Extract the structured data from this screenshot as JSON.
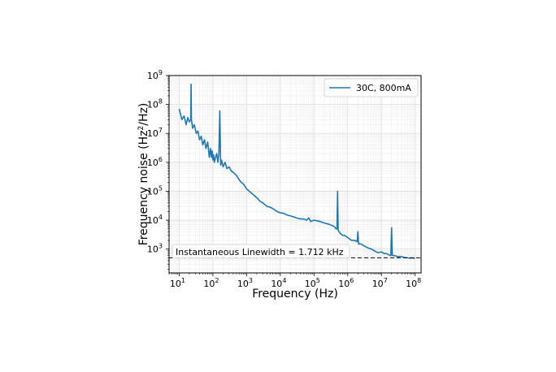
{
  "chart_data": {
    "type": "line",
    "xlabel": "Frequency (Hz)",
    "ylabel_main": "Frequency noise (Hz",
    "ylabel_sup": "2",
    "ylabel_tail": "/Hz)",
    "xscale": "log",
    "yscale": "log",
    "xlim": [
      5,
      150000000
    ],
    "ylim": [
      150,
      1000000000
    ],
    "x_tick_exponents": [
      1,
      2,
      3,
      4,
      5,
      6,
      7,
      8
    ],
    "y_tick_exponents": [
      3,
      4,
      5,
      6,
      7,
      8,
      9
    ],
    "tick_base": "10",
    "grid": true,
    "legend_position": "top-right",
    "series": [
      {
        "name": "30C, 800mA",
        "color": "#1f77b4",
        "x": [
          10,
          12,
          14,
          16,
          18,
          20,
          22,
          22.5,
          23,
          25,
          28,
          32,
          36,
          40,
          45,
          50,
          56,
          62,
          70,
          78,
          85,
          90,
          95,
          100,
          105,
          110,
          120,
          130,
          140,
          150,
          160,
          170,
          180,
          200,
          230,
          260,
          300,
          350,
          400,
          500,
          600,
          700,
          800,
          1000,
          1200,
          1500,
          2000,
          2500,
          3000,
          4000,
          5000,
          6000,
          8000,
          10000,
          13000,
          16000,
          20000,
          25000,
          30000,
          40000,
          50000,
          60000,
          70000,
          80000,
          100000,
          150000,
          200000,
          300000,
          400000,
          450000,
          480000,
          500000,
          520000,
          550000,
          600000,
          700000,
          800000,
          1000000,
          1300000,
          1600000,
          1900000,
          2000000,
          2100000,
          2500000,
          3000000,
          4000000,
          5000000,
          6000000,
          7000000,
          8000000,
          10000000,
          12000000,
          14000000,
          16000000,
          18000000,
          19000000,
          20000000,
          21000000,
          24000000,
          30000000,
          40000000,
          50000000,
          60000000,
          70000000,
          80000000,
          90000000,
          100000000
        ],
        "y": [
          70000000,
          30000000,
          40000000,
          20000000,
          35000000,
          25000000,
          30000000,
          500000000,
          30000000,
          15000000,
          20000000,
          10000000,
          12000000,
          6000000,
          8000000,
          4000000,
          6000000,
          3000000,
          5000000,
          1500000,
          3000000,
          1500000,
          2500000,
          1200000,
          1800000,
          1000000,
          1500000,
          2000000,
          1000000,
          1800000,
          60000000,
          800000,
          1200000,
          700000,
          1000000,
          600000,
          700000,
          500000,
          450000,
          350000,
          250000,
          200000,
          180000,
          120000,
          100000,
          80000,
          60000,
          45000,
          40000,
          30000,
          28000,
          25000,
          20000,
          18000,
          17000,
          15000,
          14000,
          13000,
          12000,
          11000,
          11000,
          10000,
          12000,
          9000,
          10000,
          9000,
          8000,
          7000,
          6000,
          5000,
          5000,
          100000,
          4500,
          4000,
          3500,
          3000,
          3000,
          2500,
          2000,
          2000,
          1800,
          4000,
          1500,
          1500,
          1300,
          1100,
          1000,
          900,
          800,
          750,
          800,
          700,
          700,
          650,
          600,
          600,
          5500,
          600,
          600,
          550,
          550,
          500,
          500,
          480,
          500,
          480,
          500
        ]
      }
    ],
    "hline_value": 500,
    "annotation": "Instantaneous Linewidth = 1.712 kHz"
  }
}
